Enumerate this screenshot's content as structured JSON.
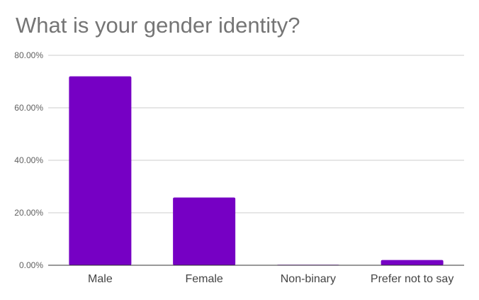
{
  "chart_data": {
    "type": "bar",
    "title": "What is your gender identity?",
    "categories": [
      "Male",
      "Female",
      "Non-binary",
      "Prefer not to say"
    ],
    "values": [
      72.0,
      25.8,
      0.2,
      2.0
    ],
    "yticks": [
      "0.00%",
      "20.00%",
      "40.00%",
      "60.00%",
      "80.00%"
    ],
    "ylim": [
      0,
      80
    ],
    "grid": true,
    "legend": "none",
    "bar_color": "#7600c4",
    "grid_color": "#cccccc",
    "axis_color": "#333333"
  }
}
